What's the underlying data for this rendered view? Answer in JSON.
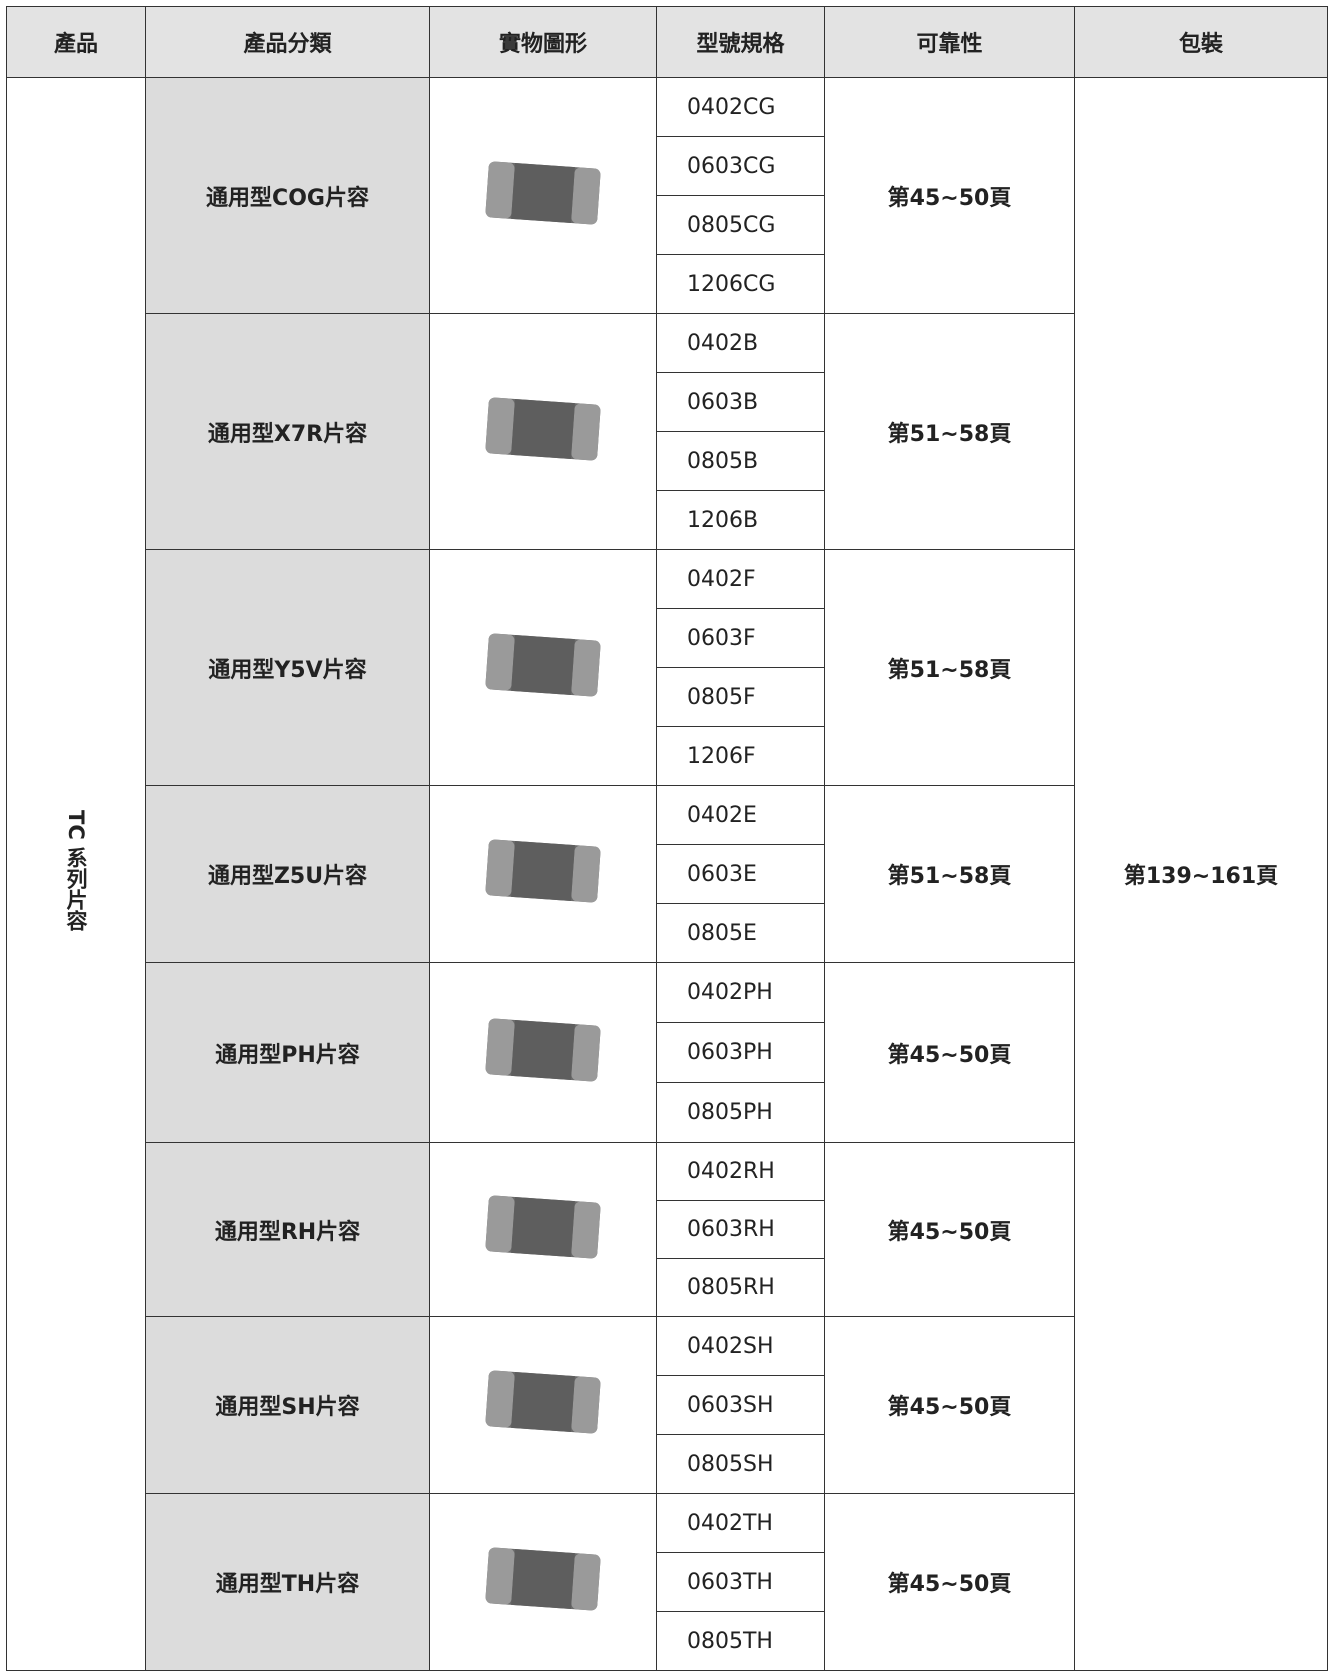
{
  "header": [
    "產品",
    "產品分類",
    "實物圖形",
    "型號規格",
    "可靠性",
    "包裝"
  ],
  "table": {
    "product": "TC 系列片容",
    "packaging": "第139~161頁",
    "groups": [
      {
        "category": "通用型COG片容",
        "specs": [
          "0402CG",
          "0603CG",
          "0805CG",
          "1206CG"
        ],
        "reliability": "第45~50頁"
      },
      {
        "category": "通用型X7R片容",
        "specs": [
          "0402B",
          "0603B",
          "0805B",
          "1206B"
        ],
        "reliability": "第51~58頁"
      },
      {
        "category": "通用型Y5V片容",
        "specs": [
          "0402F",
          "0603F",
          "0805F",
          "1206F"
        ],
        "reliability": "第51~58頁"
      },
      {
        "category": "通用型Z5U片容",
        "specs": [
          "0402E",
          "0603E",
          "0805E"
        ],
        "reliability": "第51~58頁"
      },
      {
        "category": "通用型PH片容",
        "specs": [
          "0402PH",
          "0603PH",
          "0805PH"
        ],
        "reliability": "第45~50頁"
      },
      {
        "category": "通用型RH片容",
        "specs": [
          "0402RH",
          "0603RH",
          "0805RH"
        ],
        "reliability": "第45~50頁"
      },
      {
        "category": "通用型SH片容",
        "specs": [
          "0402SH",
          "0603SH",
          "0805SH"
        ],
        "reliability": "第45~50頁"
      },
      {
        "category": "通用型TH片容",
        "specs": [
          "0402TH",
          "0603TH",
          "0805TH"
        ],
        "reliability": "第45~50頁"
      }
    ]
  }
}
